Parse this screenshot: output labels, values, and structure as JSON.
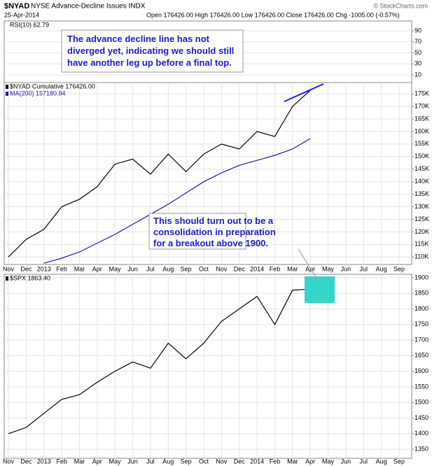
{
  "header": {
    "symbol": "$NYAD",
    "name": "NYSE Advance-Decline Issues INDX",
    "date": "25-Apr-2014",
    "quote": "Open 176426.00 High 176426.00 Low 176426.00 Close 176426.00 Chg -1005.00 (-0.57%)",
    "source": "© StockCharts.com"
  },
  "chart_data": [
    {
      "type": "line",
      "label": "RSI(10) 62.79",
      "ylim": [
        -4,
        108
      ],
      "yticks": [
        10,
        30,
        50,
        70,
        90
      ],
      "grid": true,
      "annotations": [
        "The advance decline line has not",
        "diverged yet, indicating we should still",
        "have another leg up before a final top."
      ]
    },
    {
      "type": "line",
      "grid": true,
      "x": [
        "2012-11",
        "2012-12",
        "2013-01",
        "2013-02",
        "2013-03",
        "2013-04",
        "2013-05",
        "2013-06",
        "2013-07",
        "2013-08",
        "2013-09",
        "2013-10",
        "2013-11",
        "2013-12",
        "2014-01",
        "2014-02",
        "2014-03",
        "2014-04"
      ],
      "series": [
        {
          "name": "$NYAD Cumulative 176426.00",
          "color": "#000000",
          "values": [
            110000,
            117000,
            121000,
            130000,
            133000,
            138000,
            147000,
            149000,
            143000,
            151000,
            144000,
            151000,
            155000,
            153000,
            160000,
            158000,
            170000,
            176426
          ]
        },
        {
          "name": "MA(200) 157180.94",
          "color": "#1c1c9c",
          "values": [
            null,
            null,
            107500,
            109500,
            112000,
            115500,
            119000,
            123000,
            127000,
            131000,
            135500,
            140000,
            143500,
            146500,
            148500,
            150500,
            153000,
            157180.94
          ]
        }
      ],
      "ylim": [
        107000,
        179500
      ],
      "yticks": [
        {
          "value": 110000,
          "label": "110K"
        },
        {
          "value": 115000,
          "label": "115K"
        },
        {
          "value": 120000,
          "label": "120K"
        },
        {
          "value": 125000,
          "label": "125K"
        },
        {
          "value": 130000,
          "label": "130K"
        },
        {
          "value": 135000,
          "label": "135K"
        },
        {
          "value": 140000,
          "label": "140K"
        },
        {
          "value": 145000,
          "label": "145K"
        },
        {
          "value": 150000,
          "label": "150K"
        },
        {
          "value": 155000,
          "label": "155K"
        },
        {
          "value": 160000,
          "label": "160K"
        },
        {
          "value": 165000,
          "label": "165K"
        },
        {
          "value": 170000,
          "label": "170K"
        },
        {
          "value": 175000,
          "label": "175K"
        }
      ],
      "xlim": [
        "2012-11",
        "2014-09"
      ],
      "xticks": [
        {
          "value": "2012-11",
          "label": "Nov"
        },
        {
          "value": "2012-12",
          "label": "Dec"
        },
        {
          "value": "2013-01",
          "label": "2013"
        },
        {
          "value": "2013-02",
          "label": "Feb"
        },
        {
          "value": "2013-03",
          "label": "Mar"
        },
        {
          "value": "2013-04",
          "label": "Apr"
        },
        {
          "value": "2013-05",
          "label": "May"
        },
        {
          "value": "2013-06",
          "label": "Jun"
        },
        {
          "value": "2013-07",
          "label": "Jul"
        },
        {
          "value": "2013-08",
          "label": "Aug"
        },
        {
          "value": "2013-09",
          "label": "Sep"
        },
        {
          "value": "2013-10",
          "label": "Oct"
        },
        {
          "value": "2013-11",
          "label": "Nov"
        },
        {
          "value": "2013-12",
          "label": "Dec"
        },
        {
          "value": "2014-01",
          "label": "2014"
        },
        {
          "value": "2014-02",
          "label": "Feb"
        },
        {
          "value": "2014-03",
          "label": "Mar"
        },
        {
          "value": "2014-04",
          "label": "Apr"
        },
        {
          "value": "2014-05",
          "label": "May"
        },
        {
          "value": "2014-06",
          "label": "Jun"
        },
        {
          "value": "2014-07",
          "label": "Jul"
        },
        {
          "value": "2014-08",
          "label": "Aug"
        },
        {
          "value": "2014-09",
          "label": "Sep"
        }
      ]
    },
    {
      "type": "line",
      "grid": true,
      "x": [
        "2012-11",
        "2012-12",
        "2013-01",
        "2013-02",
        "2013-03",
        "2013-04",
        "2013-05",
        "2013-06",
        "2013-07",
        "2013-08",
        "2013-09",
        "2013-10",
        "2013-11",
        "2013-12",
        "2014-01",
        "2014-02",
        "2014-03",
        "2014-04"
      ],
      "series": [
        {
          "name": "$SPX 1863.40",
          "color": "#000000",
          "values": [
            1400,
            1420,
            1465,
            1510,
            1525,
            1565,
            1600,
            1630,
            1610,
            1690,
            1640,
            1690,
            1760,
            1800,
            1840,
            1750,
            1860,
            1863.4
          ]
        }
      ],
      "ylim": [
        1321,
        1911
      ],
      "yticks": [
        1350,
        1400,
        1450,
        1500,
        1550,
        1600,
        1650,
        1700,
        1750,
        1800,
        1850,
        1900
      ],
      "xlim": [
        "2012-11",
        "2014-09"
      ],
      "annotations": [
        "This should turn out to be a",
        "consolidation in preparation",
        "for a breakout above 1900."
      ]
    }
  ]
}
